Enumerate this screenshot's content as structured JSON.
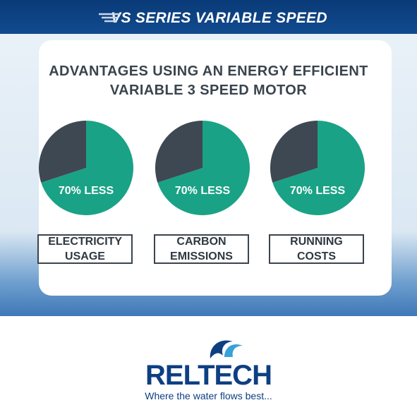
{
  "header": {
    "title": "VS SERIES VARIABLE SPEED"
  },
  "heading": {
    "line1": "ADVANTAGES USING AN ENERGY EFFICIENT",
    "line2": "VARIABLE 3 SPEED MOTOR"
  },
  "chart_data": [
    {
      "type": "pie",
      "title": "ELECTRICITY USAGE",
      "values": [
        70,
        30
      ],
      "value_labels": [
        "70% LESS",
        null
      ],
      "colors": [
        "#1aa286",
        "#3e4852"
      ]
    },
    {
      "type": "pie",
      "title": "CARBON EMISSIONS",
      "values": [
        70,
        30
      ],
      "value_labels": [
        "70% LESS",
        null
      ],
      "colors": [
        "#1aa286",
        "#3e4852"
      ]
    },
    {
      "type": "pie",
      "title": "RUNNING COSTS",
      "values": [
        70,
        30
      ],
      "value_labels": [
        "70% LESS",
        null
      ],
      "colors": [
        "#1aa286",
        "#3e4852"
      ]
    }
  ],
  "logo": {
    "name": "RELTECH",
    "tagline": "Where the water flows best..."
  }
}
